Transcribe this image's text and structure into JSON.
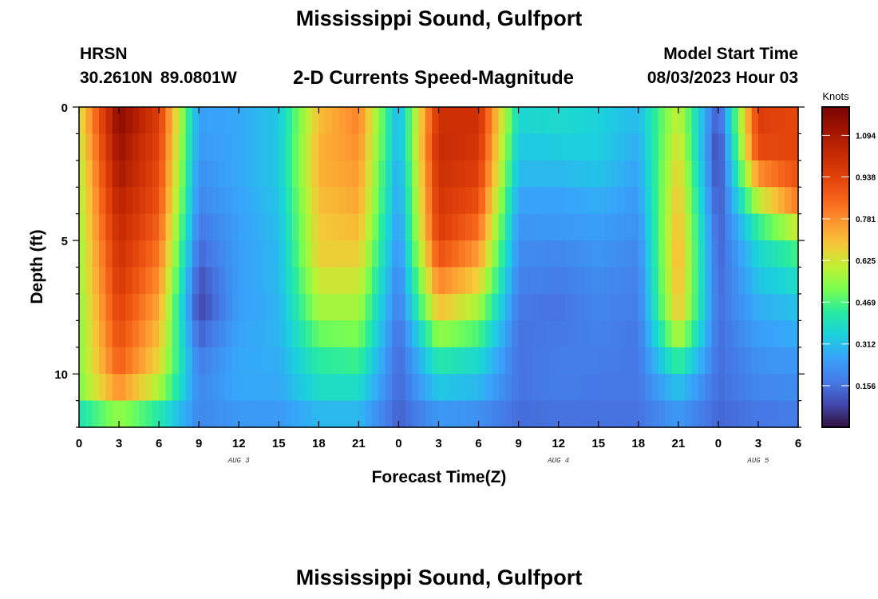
{
  "header": {
    "title": "Mississippi Sound, Gulfport",
    "station": "HRSN",
    "coordinates": "30.2610N  89.0801W",
    "subtitle": "2-D Currents Speed-Magnitude",
    "model_start_label": "Model Start Time",
    "model_start_value": "08/03/2023 Hour 03"
  },
  "footer": {
    "title": "Mississippi Sound, Gulfport"
  },
  "chart_data": {
    "type": "heatmap",
    "title": "2-D Currents Speed-Magnitude",
    "xlabel": "Forecast Time(Z)",
    "ylabel": "Depth (ft)",
    "colorbar_label": "Knots",
    "x_start_hour": 0,
    "x_end_hour": 54,
    "xlim": [
      0,
      54
    ],
    "ylim": [
      12,
      0
    ],
    "x_tick_labels": [
      "0",
      "3",
      "6",
      "9",
      "12",
      "15",
      "18",
      "21",
      "0",
      "3",
      "6",
      "9",
      "12",
      "15",
      "18",
      "21",
      "0",
      "3",
      "6"
    ],
    "y_ticks": [
      0,
      5,
      10
    ],
    "day_labels": [
      {
        "label": "AUG 3",
        "hour": 12
      },
      {
        "label": "AUG 4",
        "hour": 36
      },
      {
        "label": "AUG 5",
        "hour": 51
      }
    ],
    "colorbar_ticks": [
      0.156,
      0.312,
      0.469,
      0.625,
      0.781,
      0.938,
      1.094
    ],
    "colorbar_range": [
      0,
      1.2
    ],
    "depth_levels_ft": [
      0.5,
      1.5,
      2.5,
      3.5,
      4.5,
      5.5,
      6.5,
      7.5,
      8.5,
      9.5,
      10.5,
      11.5
    ],
    "time_hours": [
      0,
      3,
      6,
      9,
      12,
      15,
      18,
      21,
      24,
      27,
      30,
      33,
      36,
      39,
      42,
      45,
      48,
      51,
      54
    ],
    "speed_knots": [
      [
        0.62,
        1.16,
        0.95,
        0.25,
        0.27,
        0.33,
        0.7,
        0.8,
        0.28,
        1.0,
        1.0,
        0.36,
        0.37,
        0.35,
        0.3,
        0.62,
        0.1,
        0.95,
        0.92
      ],
      [
        0.6,
        1.13,
        0.93,
        0.24,
        0.27,
        0.33,
        0.72,
        0.78,
        0.28,
        1.02,
        0.98,
        0.33,
        0.34,
        0.34,
        0.28,
        0.65,
        0.07,
        0.92,
        0.93
      ],
      [
        0.58,
        1.1,
        0.91,
        0.22,
        0.27,
        0.33,
        0.72,
        0.76,
        0.26,
        1.0,
        0.95,
        0.3,
        0.3,
        0.32,
        0.26,
        0.68,
        0.08,
        0.78,
        0.9
      ],
      [
        0.57,
        1.06,
        0.89,
        0.2,
        0.26,
        0.32,
        0.7,
        0.74,
        0.25,
        0.98,
        0.9,
        0.26,
        0.26,
        0.28,
        0.24,
        0.7,
        0.1,
        0.6,
        0.82
      ],
      [
        0.56,
        1.03,
        0.86,
        0.17,
        0.25,
        0.31,
        0.68,
        0.71,
        0.23,
        0.96,
        0.84,
        0.23,
        0.24,
        0.25,
        0.22,
        0.72,
        0.12,
        0.44,
        0.62
      ],
      [
        0.55,
        1.0,
        0.82,
        0.14,
        0.25,
        0.3,
        0.67,
        0.67,
        0.21,
        0.9,
        0.76,
        0.21,
        0.2,
        0.23,
        0.2,
        0.73,
        0.13,
        0.36,
        0.46
      ],
      [
        0.55,
        0.97,
        0.78,
        0.1,
        0.25,
        0.3,
        0.62,
        0.62,
        0.19,
        0.8,
        0.67,
        0.19,
        0.18,
        0.21,
        0.19,
        0.72,
        0.14,
        0.32,
        0.38
      ],
      [
        0.54,
        0.94,
        0.74,
        0.08,
        0.25,
        0.29,
        0.57,
        0.57,
        0.17,
        0.7,
        0.57,
        0.17,
        0.16,
        0.2,
        0.18,
        0.7,
        0.15,
        0.28,
        0.32
      ],
      [
        0.53,
        0.91,
        0.7,
        0.13,
        0.26,
        0.29,
        0.5,
        0.52,
        0.15,
        0.55,
        0.47,
        0.16,
        0.17,
        0.19,
        0.17,
        0.6,
        0.15,
        0.25,
        0.28
      ],
      [
        0.53,
        0.87,
        0.66,
        0.18,
        0.27,
        0.28,
        0.43,
        0.45,
        0.14,
        0.42,
        0.37,
        0.16,
        0.18,
        0.18,
        0.17,
        0.45,
        0.15,
        0.22,
        0.24
      ],
      [
        0.52,
        0.78,
        0.58,
        0.2,
        0.27,
        0.27,
        0.38,
        0.38,
        0.14,
        0.33,
        0.3,
        0.16,
        0.18,
        0.17,
        0.17,
        0.32,
        0.15,
        0.2,
        0.21
      ],
      [
        0.4,
        0.55,
        0.42,
        0.2,
        0.24,
        0.24,
        0.3,
        0.3,
        0.13,
        0.24,
        0.22,
        0.15,
        0.16,
        0.16,
        0.16,
        0.24,
        0.14,
        0.17,
        0.18
      ]
    ]
  }
}
